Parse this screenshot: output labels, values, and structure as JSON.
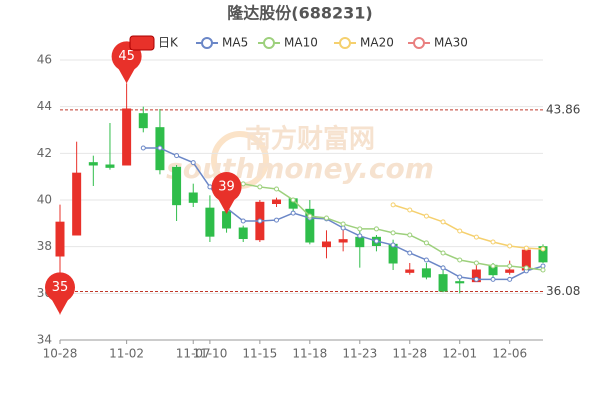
{
  "chart_data": {
    "type": "candlestick",
    "title": "隆达股份(688231)",
    "categories": [
      "10-28",
      null,
      null,
      null,
      "11-02",
      null,
      null,
      null,
      "11-07",
      "11-10",
      null,
      null,
      "11-15",
      null,
      null,
      "11-18",
      null,
      null,
      "11-23",
      null,
      null,
      "11-28",
      null,
      null,
      "12-01",
      null,
      null,
      "12-06",
      null,
      null
    ],
    "ohlc": {
      "name": "日K",
      "color_up": "#e8312a",
      "color_down": "#2fbd4a",
      "open": [
        37.6,
        38.5,
        41.6,
        41.5,
        41.5,
        43.7,
        43.1,
        41.4,
        40.3,
        39.65,
        39.5,
        38.8,
        38.3,
        39.85,
        40.05,
        39.6,
        38.0,
        38.2,
        38.4,
        38.4,
        38.1,
        36.9,
        37.05,
        36.8,
        36.5,
        36.5,
        37.2,
        36.9,
        37.0,
        38.0
      ],
      "high": [
        39.8,
        42.5,
        41.9,
        43.3,
        45,
        44.0,
        43.9,
        41.5,
        40.7,
        40.2,
        39.6,
        38.9,
        40.0,
        40.1,
        40.1,
        40.0,
        38.7,
        38.8,
        38.8,
        38.5,
        38.3,
        37.3,
        37.3,
        37.2,
        36.7,
        37.2,
        37.3,
        37.4,
        37.95,
        38.1
      ],
      "low": [
        35.1,
        38.5,
        40.6,
        41.3,
        41.5,
        42.9,
        41.1,
        39.1,
        39.7,
        38.2,
        38.6,
        38.2,
        38.2,
        39.7,
        39.5,
        38.1,
        37.5,
        37.8,
        37.1,
        37.8,
        37.0,
        36.8,
        36.6,
        36.05,
        36.0,
        36.5,
        36.7,
        36.8,
        36.9,
        37.3
      ],
      "close": [
        39.05,
        41.15,
        41.5,
        41.4,
        43.9,
        43.1,
        41.3,
        39.8,
        39.9,
        38.45,
        38.8,
        38.35,
        39.9,
        40.0,
        39.65,
        38.2,
        38.2,
        38.3,
        38.0,
        38.05,
        37.3,
        37.0,
        36.7,
        36.1,
        36.45,
        37.0,
        36.8,
        37.0,
        37.85,
        37.35
      ]
    },
    "series": [
      {
        "name": "MA5",
        "color": "#6b87c7",
        "values": [
          null,
          null,
          null,
          null,
          null,
          42.23,
          42.23,
          41.9,
          41.6,
          40.56,
          39.66,
          39.1,
          39.1,
          39.14,
          39.44,
          39.23,
          39.19,
          38.8,
          38.46,
          38.24,
          38.07,
          37.73,
          37.43,
          37.09,
          36.7,
          36.6,
          36.6,
          36.6,
          36.96,
          37.17
        ]
      },
      {
        "name": "MA10",
        "color": "#9dd07c",
        "values": [
          null,
          null,
          null,
          null,
          null,
          null,
          null,
          null,
          null,
          null,
          40.94,
          40.69,
          40.56,
          40.47,
          40.0,
          39.31,
          39.23,
          38.97,
          38.76,
          38.76,
          38.59,
          38.5,
          38.16,
          37.73,
          37.43,
          37.3,
          37.17,
          37.17,
          37.09,
          37.0
        ]
      },
      {
        "name": "MA20",
        "color": "#f5d06e",
        "values": [
          null,
          null,
          null,
          null,
          null,
          null,
          null,
          null,
          null,
          null,
          null,
          null,
          null,
          null,
          null,
          null,
          null,
          null,
          null,
          null,
          39.79,
          39.57,
          39.31,
          39.06,
          38.67,
          38.41,
          38.2,
          38.03,
          37.94,
          37.9
        ]
      },
      {
        "name": "MA30",
        "color": "#e98080",
        "values": [
          null,
          null,
          null,
          null,
          null,
          null,
          null,
          null,
          null,
          null,
          null,
          null,
          null,
          null,
          null,
          null,
          null,
          null,
          null,
          null,
          null,
          null,
          null,
          null,
          null,
          null,
          null,
          null,
          null,
          null
        ]
      }
    ],
    "ylim": [
      34,
      46
    ],
    "yticks": [
      34,
      36,
      38,
      40,
      42,
      44,
      46
    ],
    "grid": true,
    "hlines": [
      43.86,
      36.08
    ],
    "annotations": [
      {
        "at": 4,
        "value": 45,
        "label": "45"
      },
      {
        "at": 10,
        "value": 39.4,
        "label": "39"
      },
      {
        "at": 0,
        "value": 35.1,
        "label": "35"
      }
    ],
    "watermark": [
      "南方财富网",
      "southmoney.com"
    ]
  }
}
